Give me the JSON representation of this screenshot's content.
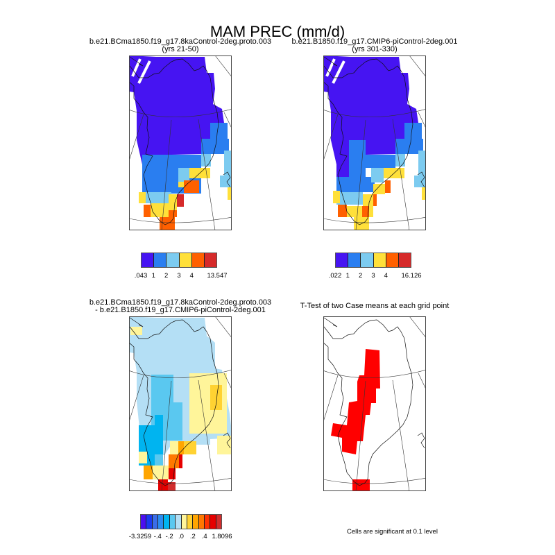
{
  "title": "MAM PREC (mm/d)",
  "panels": [
    {
      "title": "b.e21.BCma1850.f19_g17.8kaControl-2deg.proto.003",
      "subtitle": "(yrs 21-50)"
    },
    {
      "title": "b.e21.B1850.f19_g17.CMIP6-piControl-2deg.001",
      "subtitle": "(yrs 301-330)"
    },
    {
      "title": "b.e21.BCma1850.f19_g17.8kaControl-2deg.proto.003",
      "subtitle": "- b.e21.B1850.f19_g17.CMIP6-piControl-2deg.001"
    },
    {
      "title": "T-Test of two Case means at each grid point"
    }
  ],
  "colorbars": [
    {
      "colors": [
        "#4614f2",
        "#2a7ef0",
        "#7ccbf0",
        "#ffe03a",
        "#ff6000",
        "#d62a2a"
      ],
      "labels": [
        {
          "text": ".043",
          "at": 0
        },
        {
          "text": "1",
          "at": 1
        },
        {
          "text": "2",
          "at": 2
        },
        {
          "text": "3",
          "at": 3
        },
        {
          "text": "4",
          "at": 4
        },
        {
          "text": "13.547",
          "at": 6
        }
      ]
    },
    {
      "colors": [
        "#4614f2",
        "#2a7ef0",
        "#7ccbf0",
        "#ffe03a",
        "#ff6000",
        "#d62a2a"
      ],
      "labels": [
        {
          "text": ".022",
          "at": 0
        },
        {
          "text": "1",
          "at": 1
        },
        {
          "text": "2",
          "at": 2
        },
        {
          "text": "3",
          "at": 3
        },
        {
          "text": "4",
          "at": 4
        },
        {
          "text": "16.126",
          "at": 6
        }
      ]
    },
    {
      "colors": [
        "#4b0ff0",
        "#1a3af0",
        "#3a6de8",
        "#2a8cf0",
        "#00b4f0",
        "#5ac8f0",
        "#b4dff5",
        "#fff59a",
        "#ffd232",
        "#ffa500",
        "#ff7800",
        "#ff3200",
        "#e60000",
        "#d22d2d"
      ],
      "labels": [
        {
          "text": "-3.3259",
          "at": 0
        },
        {
          "text": "-.4",
          "at": 3
        },
        {
          "text": "-.2",
          "at": 5
        },
        {
          "text": ".0",
          "at": 7
        },
        {
          "text": ".2",
          "at": 9
        },
        {
          "text": ".4",
          "at": 11
        },
        {
          "text": "1.8096",
          "at": 14
        }
      ]
    }
  ],
  "significance_note": "Cells are significant at 0.1 level",
  "significance_color": "#ff0000"
}
